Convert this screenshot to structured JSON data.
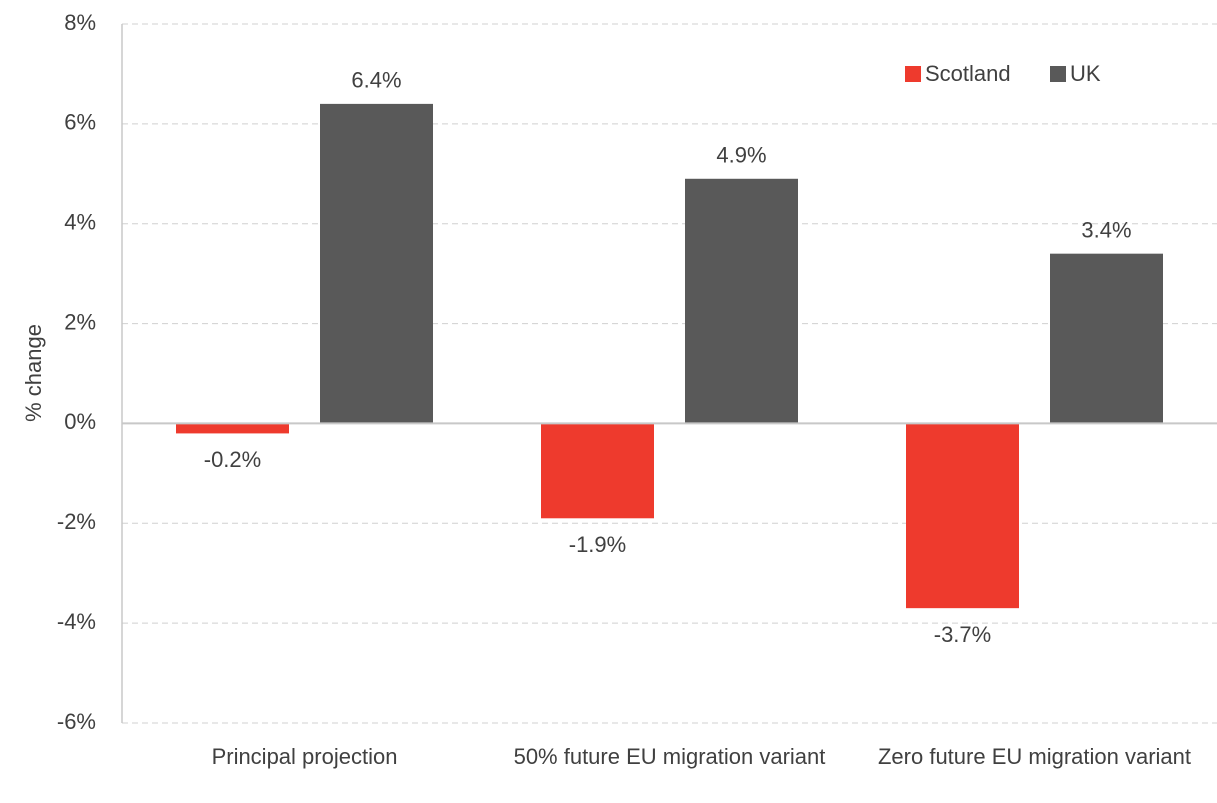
{
  "chart_data": {
    "type": "bar",
    "categories": [
      "Principal projection",
      "50% future EU migration variant",
      "Zero future EU migration variant"
    ],
    "series": [
      {
        "name": "Scotland",
        "color": "#ee3a2d",
        "values": [
          -0.2,
          -1.9,
          -3.7
        ],
        "value_labels": [
          "-0.2%",
          "-1.9%",
          "-3.7%"
        ]
      },
      {
        "name": "UK",
        "color": "#595959",
        "values": [
          6.4,
          4.9,
          3.4
        ],
        "value_labels": [
          "6.4%",
          "4.9%",
          "3.4%"
        ]
      }
    ],
    "ylabel": "% change",
    "ylim": [
      -6,
      8
    ],
    "yticks": [
      {
        "value": -6,
        "label": "-6%"
      },
      {
        "value": -4,
        "label": "-4%"
      },
      {
        "value": -2,
        "label": "-2%"
      },
      {
        "value": 0,
        "label": "0%"
      },
      {
        "value": 2,
        "label": "2%"
      },
      {
        "value": 4,
        "label": "4%"
      },
      {
        "value": 6,
        "label": "6%"
      },
      {
        "value": 8,
        "label": "8%"
      }
    ],
    "grid": true,
    "legend": "top-right"
  }
}
